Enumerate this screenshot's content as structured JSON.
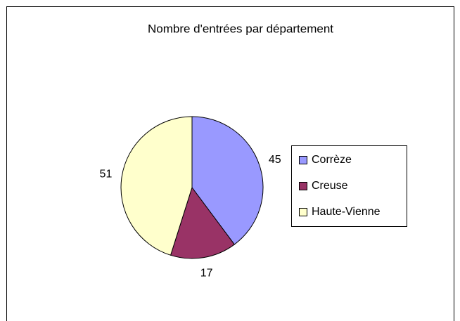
{
  "chart_data": {
    "type": "pie",
    "title": "Nombre d'entrées par département",
    "categories": [
      "Corrèze",
      "Creuse",
      "Haute-Vienne"
    ],
    "values": [
      45,
      17,
      51
    ],
    "colors": [
      "#9999ff",
      "#993366",
      "#ffffcc"
    ],
    "legend": "right"
  }
}
